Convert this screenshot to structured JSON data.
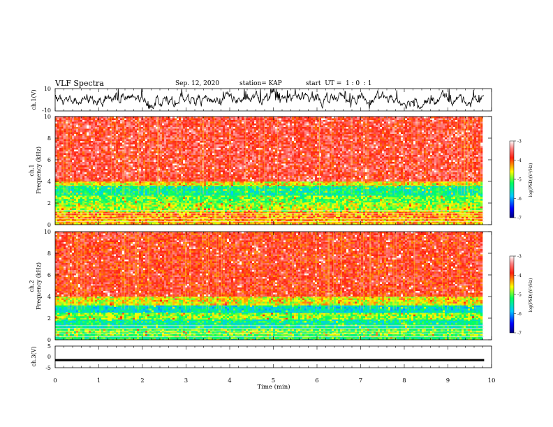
{
  "header": {
    "title": "VLF Spectra",
    "date": "Sep. 12, 2020",
    "station": "station= KAP",
    "start": "start  UT =  1 : 0  : 1"
  },
  "chart_data": [
    {
      "type": "line",
      "panel": "ch1-waveform",
      "ylabel": "ch.1(V)",
      "ylim": [
        -10,
        10
      ],
      "yticks": [
        "10",
        "-10"
      ],
      "xlim": [
        0,
        10
      ],
      "series_mean": 0.5,
      "series_amplitude_range": [
        -8,
        10
      ],
      "color": "#000000"
    },
    {
      "type": "heatmap",
      "panel": "ch1-spectrogram",
      "ylabel": "ch.1\nFrequency (kHz)",
      "ylim": [
        0,
        10
      ],
      "yticks": [
        "0",
        "2",
        "4",
        "6",
        "8",
        "10"
      ],
      "xlim": [
        0,
        10
      ],
      "colorbar": {
        "label": "log(PSD)(V²/Hz)",
        "range": [
          -7,
          -3
        ],
        "ticks": [
          "-3",
          "-4",
          "-5",
          "-6",
          "-7"
        ]
      },
      "bands": [
        {
          "from_khz": 0,
          "to_khz": 0.5,
          "level": -4.4
        },
        {
          "from_khz": 0.5,
          "to_khz": 1.2,
          "level": -4.3
        },
        {
          "from_khz": 1.2,
          "to_khz": 2.0,
          "level": -4.8
        },
        {
          "from_khz": 2.0,
          "to_khz": 2.7,
          "level": -5.0
        },
        {
          "from_khz": 2.7,
          "to_khz": 3.6,
          "level": -5.4
        },
        {
          "from_khz": 3.6,
          "to_khz": 4.0,
          "level": -4.6
        },
        {
          "from_khz": 4.0,
          "to_khz": 10.0,
          "level": -3.7
        }
      ]
    },
    {
      "type": "heatmap",
      "panel": "ch2-spectrogram",
      "ylabel": "ch.2\nFrequency (kHz)",
      "ylim": [
        0,
        10
      ],
      "yticks": [
        "0",
        "2",
        "4",
        "6",
        "8",
        "10"
      ],
      "xlim": [
        0,
        10
      ],
      "colorbar": {
        "label": "log(PSD)(V²/Hz)",
        "range": [
          -7,
          -3
        ],
        "ticks": [
          "-3",
          "-4",
          "-5",
          "-6",
          "-7"
        ]
      },
      "bands": [
        {
          "from_khz": 0,
          "to_khz": 0.4,
          "level": -5.2
        },
        {
          "from_khz": 0.4,
          "to_khz": 1.0,
          "level": -5.0
        },
        {
          "from_khz": 1.0,
          "to_khz": 1.9,
          "level": -5.4
        },
        {
          "from_khz": 1.9,
          "to_khz": 2.5,
          "level": -4.9
        },
        {
          "from_khz": 2.5,
          "to_khz": 3.2,
          "level": -5.6
        },
        {
          "from_khz": 3.2,
          "to_khz": 4.0,
          "level": -4.6
        },
        {
          "from_khz": 4.0,
          "to_khz": 10.0,
          "level": -3.8
        }
      ]
    },
    {
      "type": "line",
      "panel": "ch3-waveform",
      "ylabel": "ch.3(V)",
      "ylim": [
        -5,
        5
      ],
      "yticks": [
        "5",
        "0",
        "-5"
      ],
      "xlim": [
        0,
        10
      ],
      "series_mean": -1.5,
      "series_amplitude_range": [
        -2,
        -1
      ],
      "color": "#000000"
    }
  ],
  "xaxis": {
    "label": "Time  (min)",
    "ticks": [
      "0",
      "1",
      "2",
      "3",
      "4",
      "5",
      "6",
      "7",
      "8",
      "9",
      "10"
    ],
    "data_end": 9.83
  }
}
